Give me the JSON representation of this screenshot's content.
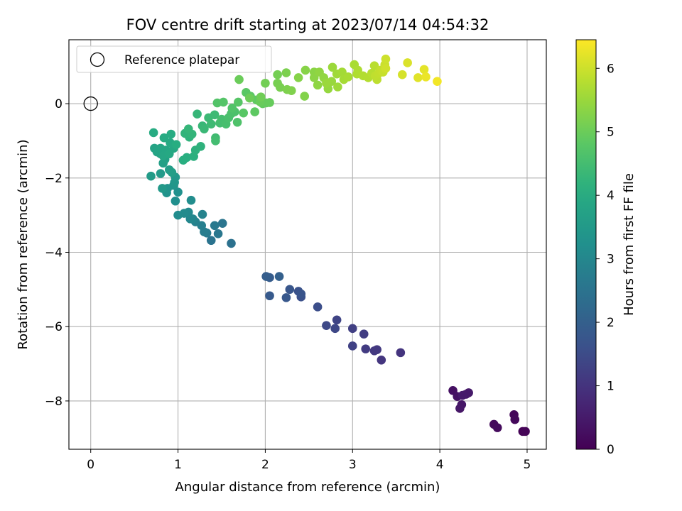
{
  "chart_data": {
    "type": "scatter",
    "title": "FOV centre drift starting at 2023/07/14 04:54:32",
    "xlabel": "Angular distance from reference (arcmin)",
    "ylabel": "Rotation from reference (arcmin)",
    "xlim": [
      -0.25,
      5.22
    ],
    "ylim": [
      -9.3,
      1.72
    ],
    "x_ticks": [
      0,
      1,
      2,
      3,
      4,
      5
    ],
    "y_ticks": [
      0,
      -2,
      -4,
      -6,
      -8
    ],
    "x_tick_labels": [
      "0",
      "1",
      "2",
      "3",
      "4",
      "5"
    ],
    "y_tick_labels": [
      "0",
      "−2",
      "−4",
      "−6",
      "−8"
    ],
    "grid": true,
    "legend": {
      "position": "top-left",
      "entries": [
        "Reference platepar"
      ]
    },
    "reference_point": {
      "x": 0,
      "y": 0
    },
    "colorbar": {
      "label": "Hours from first FF file",
      "colormap": "viridis",
      "range": [
        0,
        6.45
      ],
      "ticks": [
        0,
        1,
        2,
        3,
        4,
        5,
        6
      ],
      "tick_labels": [
        "0",
        "1",
        "2",
        "3",
        "4",
        "5",
        "6"
      ]
    },
    "points": [
      [
        4.95,
        -8.82,
        0.02
      ],
      [
        4.98,
        -8.82,
        0.05
      ],
      [
        4.85,
        -8.37,
        0.1
      ],
      [
        4.86,
        -8.5,
        0.13
      ],
      [
        4.62,
        -8.63,
        0.17
      ],
      [
        4.66,
        -8.72,
        0.2
      ],
      [
        4.15,
        -7.72,
        0.3
      ],
      [
        4.2,
        -7.88,
        0.35
      ],
      [
        4.25,
        -8.1,
        0.4
      ],
      [
        4.23,
        -8.2,
        0.43
      ],
      [
        4.3,
        -7.82,
        0.45
      ],
      [
        4.33,
        -7.78,
        0.48
      ],
      [
        4.26,
        -7.85,
        0.5
      ],
      [
        3.55,
        -6.7,
        1.0
      ],
      [
        3.33,
        -6.9,
        1.05
      ],
      [
        3.28,
        -6.62,
        1.1
      ],
      [
        3.25,
        -6.65,
        1.12
      ],
      [
        3.15,
        -6.6,
        1.15
      ],
      [
        3.13,
        -6.2,
        1.2
      ],
      [
        3.0,
        -6.05,
        1.25
      ],
      [
        3.0,
        -6.52,
        1.28
      ],
      [
        2.82,
        -5.82,
        1.35
      ],
      [
        2.8,
        -6.05,
        1.4
      ],
      [
        2.7,
        -5.97,
        1.45
      ],
      [
        2.6,
        -5.47,
        1.55
      ],
      [
        2.41,
        -5.2,
        1.6
      ],
      [
        2.38,
        -5.05,
        1.65
      ],
      [
        2.41,
        -5.12,
        1.7
      ],
      [
        2.28,
        -5.0,
        1.75
      ],
      [
        2.24,
        -5.22,
        1.8
      ],
      [
        2.05,
        -5.17,
        1.85
      ],
      [
        2.05,
        -4.68,
        1.9
      ],
      [
        2.01,
        -4.65,
        1.95
      ],
      [
        2.16,
        -4.65,
        2.0
      ],
      [
        1.61,
        -3.76,
        2.45
      ],
      [
        1.38,
        -3.68,
        2.5
      ],
      [
        1.51,
        -3.22,
        2.55
      ],
      [
        1.46,
        -3.5,
        2.6
      ],
      [
        1.42,
        -3.28,
        2.65
      ],
      [
        1.33,
        -3.48,
        2.7
      ],
      [
        1.3,
        -3.45,
        2.75
      ],
      [
        1.27,
        -3.28,
        2.8
      ],
      [
        1.2,
        -3.18,
        2.85
      ],
      [
        1.28,
        -2.98,
        2.9
      ],
      [
        1.17,
        -3.1,
        2.95
      ],
      [
        1.14,
        -3.1,
        3.0
      ],
      [
        1.12,
        -2.92,
        3.05
      ],
      [
        1.07,
        -2.95,
        3.1
      ],
      [
        1.0,
        -3.0,
        3.12
      ],
      [
        1.15,
        -2.6,
        3.15
      ],
      [
        0.97,
        -2.62,
        3.2
      ],
      [
        1.0,
        -2.38,
        3.25
      ],
      [
        0.87,
        -2.4,
        3.3
      ],
      [
        0.88,
        -2.28,
        3.33
      ],
      [
        0.95,
        -2.2,
        3.38
      ],
      [
        0.96,
        -2.12,
        3.42
      ],
      [
        0.97,
        -1.98,
        3.45
      ],
      [
        0.82,
        -2.28,
        3.48
      ],
      [
        0.8,
        -1.88,
        3.52
      ],
      [
        0.69,
        -1.95,
        3.55
      ],
      [
        0.9,
        -1.78,
        3.6
      ],
      [
        0.93,
        -1.85,
        3.63
      ],
      [
        0.83,
        -1.6,
        3.67
      ],
      [
        0.85,
        -1.5,
        3.7
      ],
      [
        0.8,
        -1.35,
        3.73
      ],
      [
        0.73,
        -1.2,
        3.76
      ],
      [
        0.76,
        -1.3,
        3.8
      ],
      [
        0.8,
        -1.2,
        3.82
      ],
      [
        0.86,
        -1.25,
        3.85
      ],
      [
        0.83,
        -1.4,
        3.87
      ],
      [
        0.95,
        -1.2,
        3.9
      ],
      [
        0.9,
        -1.35,
        3.92
      ],
      [
        0.91,
        -1.05,
        3.95
      ],
      [
        0.84,
        -0.92,
        3.98
      ],
      [
        0.92,
        -0.82,
        4.0
      ],
      [
        0.72,
        -0.78,
        4.02
      ],
      [
        0.98,
        -1.1,
        4.05
      ],
      [
        1.06,
        -1.52,
        4.08
      ],
      [
        1.1,
        -1.45,
        4.1
      ],
      [
        1.18,
        -1.42,
        4.13
      ],
      [
        1.2,
        -1.25,
        4.16
      ],
      [
        1.26,
        -1.15,
        4.18
      ],
      [
        1.13,
        -0.9,
        4.2
      ],
      [
        1.08,
        -0.8,
        4.23
      ],
      [
        1.16,
        -0.82,
        4.25
      ],
      [
        1.12,
        -0.68,
        4.28
      ],
      [
        1.22,
        -0.28,
        4.3
      ],
      [
        1.28,
        -0.6,
        4.33
      ],
      [
        1.3,
        -0.68,
        4.35
      ],
      [
        1.35,
        -0.38,
        4.38
      ],
      [
        1.42,
        -0.3,
        4.4
      ],
      [
        1.38,
        -0.55,
        4.42
      ],
      [
        1.43,
        -0.92,
        4.45
      ],
      [
        1.43,
        -1.0,
        4.48
      ],
      [
        1.48,
        -0.52,
        4.5
      ],
      [
        1.5,
        -0.42,
        4.52
      ],
      [
        1.55,
        -0.55,
        4.55
      ],
      [
        1.58,
        -0.38,
        4.57
      ],
      [
        1.61,
        -0.27,
        4.6
      ],
      [
        1.65,
        -0.22,
        4.62
      ],
      [
        1.68,
        -0.5,
        4.65
      ],
      [
        1.62,
        -0.12,
        4.68
      ],
      [
        1.45,
        0.02,
        4.7
      ],
      [
        1.52,
        0.04,
        4.72
      ],
      [
        1.69,
        0.04,
        4.75
      ],
      [
        1.75,
        -0.25,
        4.78
      ],
      [
        1.78,
        0.3,
        4.8
      ],
      [
        1.83,
        0.2,
        4.82
      ],
      [
        1.88,
        -0.22,
        4.85
      ],
      [
        1.9,
        0.1,
        4.87
      ],
      [
        1.97,
        0.0,
        4.9
      ],
      [
        2.01,
        0.02,
        4.93
      ],
      [
        2.05,
        0.03,
        4.95
      ],
      [
        1.94,
        0.05,
        4.98
      ],
      [
        1.7,
        0.65,
        5.0
      ],
      [
        1.82,
        0.15,
        5.02
      ],
      [
        1.95,
        0.18,
        5.05
      ],
      [
        2.0,
        0.55,
        5.08
      ],
      [
        2.14,
        0.78,
        5.1
      ],
      [
        2.14,
        0.55,
        5.13
      ],
      [
        2.17,
        0.44,
        5.15
      ],
      [
        2.24,
        0.83,
        5.18
      ],
      [
        2.25,
        0.38,
        5.2
      ],
      [
        2.3,
        0.35,
        5.22
      ],
      [
        2.45,
        0.2,
        5.25
      ],
      [
        2.38,
        0.7,
        5.28
      ],
      [
        2.46,
        0.9,
        5.3
      ],
      [
        2.56,
        0.85,
        5.33
      ],
      [
        2.56,
        0.7,
        5.35
      ],
      [
        2.6,
        0.5,
        5.38
      ],
      [
        2.62,
        0.85,
        5.4
      ],
      [
        2.67,
        0.7,
        5.42
      ],
      [
        2.72,
        0.4,
        5.45
      ],
      [
        2.76,
        0.6,
        5.48
      ],
      [
        2.7,
        0.55,
        5.5
      ],
      [
        2.77,
        0.98,
        5.52
      ],
      [
        2.83,
        0.45,
        5.55
      ],
      [
        2.82,
        0.8,
        5.57
      ],
      [
        2.88,
        0.85,
        5.6
      ],
      [
        2.9,
        0.65,
        5.62
      ],
      [
        2.95,
        0.72,
        5.65
      ],
      [
        3.02,
        1.05,
        5.67
      ],
      [
        3.06,
        0.9,
        5.7
      ],
      [
        3.05,
        0.8,
        5.72
      ],
      [
        3.12,
        0.75,
        5.75
      ],
      [
        3.18,
        0.7,
        5.77
      ],
      [
        3.22,
        0.82,
        5.8
      ],
      [
        3.25,
        1.02,
        5.82
      ],
      [
        3.28,
        0.65,
        5.85
      ],
      [
        3.26,
        0.75,
        5.87
      ],
      [
        3.3,
        0.82,
        5.9
      ],
      [
        3.32,
        0.9,
        5.92
      ],
      [
        3.35,
        0.85,
        5.95
      ],
      [
        3.37,
        1.05,
        5.97
      ],
      [
        3.38,
        1.2,
        6.0
      ],
      [
        3.38,
        0.95,
        6.02
      ],
      [
        3.57,
        0.78,
        6.08
      ],
      [
        3.63,
        1.1,
        6.12
      ],
      [
        3.75,
        0.7,
        6.18
      ],
      [
        3.82,
        0.92,
        6.22
      ],
      [
        3.84,
        0.72,
        6.28
      ],
      [
        3.97,
        0.6,
        6.35
      ]
    ]
  }
}
